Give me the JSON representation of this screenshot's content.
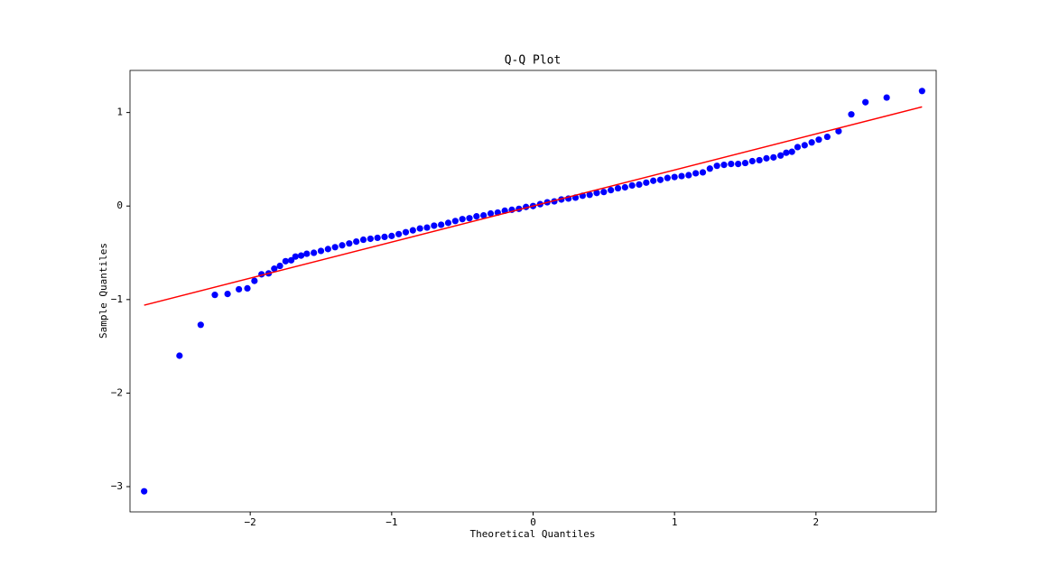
{
  "chart_data": {
    "type": "scatter",
    "title": "Q-Q Plot",
    "x_label": "Theoretical Quantiles",
    "y_label": "Sample Quantiles",
    "xlim": [
      -2.85,
      2.85
    ],
    "ylim": [
      -3.27,
      1.45
    ],
    "xticks": [
      {
        "value": -2,
        "label": "−2"
      },
      {
        "value": -1,
        "label": "−1"
      },
      0,
      1,
      2
    ],
    "yticks": [
      {
        "value": -3,
        "label": "−3"
      },
      {
        "value": -2,
        "label": "−2"
      },
      {
        "value": -1,
        "label": "−1"
      },
      0,
      1
    ],
    "points": {
      "color": "#0000ff",
      "x": [
        -2.75,
        -2.5,
        -2.35,
        -2.25,
        -2.16,
        -2.08,
        -2.02,
        -1.97,
        -1.92,
        -1.87,
        -1.83,
        -1.79,
        -1.75,
        -1.71,
        -1.68,
        -1.64,
        -1.6,
        -1.55,
        -1.5,
        -1.45,
        -1.4,
        -1.35,
        -1.3,
        -1.25,
        -1.2,
        -1.15,
        -1.1,
        -1.05,
        -1.0,
        -0.95,
        -0.9,
        -0.85,
        -0.8,
        -0.75,
        -0.7,
        -0.65,
        -0.6,
        -0.55,
        -0.5,
        -0.45,
        -0.4,
        -0.35,
        -0.3,
        -0.25,
        -0.2,
        -0.15,
        -0.1,
        -0.05,
        0,
        0.05,
        0.1,
        0.15,
        0.2,
        0.25,
        0.3,
        0.35,
        0.4,
        0.45,
        0.5,
        0.55,
        0.6,
        0.65,
        0.7,
        0.75,
        0.8,
        0.85,
        0.9,
        0.95,
        1.0,
        1.05,
        1.1,
        1.15,
        1.2,
        1.25,
        1.3,
        1.35,
        1.4,
        1.45,
        1.5,
        1.55,
        1.6,
        1.65,
        1.7,
        1.75,
        1.79,
        1.83,
        1.87,
        1.92,
        1.97,
        2.02,
        2.08,
        2.16,
        2.25,
        2.35,
        2.5,
        2.75
      ],
      "y": [
        -3.05,
        -1.6,
        -1.27,
        -0.95,
        -0.94,
        -0.89,
        -0.88,
        -0.8,
        -0.73,
        -0.72,
        -0.67,
        -0.64,
        -0.59,
        -0.58,
        -0.54,
        -0.53,
        -0.51,
        -0.5,
        -0.48,
        -0.46,
        -0.44,
        -0.42,
        -0.4,
        -0.38,
        -0.36,
        -0.35,
        -0.34,
        -0.33,
        -0.32,
        -0.3,
        -0.28,
        -0.26,
        -0.24,
        -0.23,
        -0.21,
        -0.2,
        -0.18,
        -0.16,
        -0.14,
        -0.13,
        -0.11,
        -0.1,
        -0.08,
        -0.07,
        -0.05,
        -0.04,
        -0.03,
        -0.01,
        0,
        0.02,
        0.04,
        0.05,
        0.07,
        0.08,
        0.09,
        0.11,
        0.12,
        0.14,
        0.15,
        0.17,
        0.19,
        0.2,
        0.22,
        0.23,
        0.25,
        0.27,
        0.28,
        0.3,
        0.31,
        0.32,
        0.33,
        0.35,
        0.36,
        0.4,
        0.43,
        0.44,
        0.45,
        0.45,
        0.46,
        0.48,
        0.49,
        0.51,
        0.52,
        0.54,
        0.57,
        0.58,
        0.63,
        0.65,
        0.68,
        0.71,
        0.74,
        0.8,
        0.98,
        1.11,
        1.16,
        1.23
      ]
    },
    "reference_line": {
      "color": "#ff0000",
      "x": [
        -2.75,
        2.75
      ],
      "y": [
        -1.06,
        1.06
      ]
    }
  }
}
